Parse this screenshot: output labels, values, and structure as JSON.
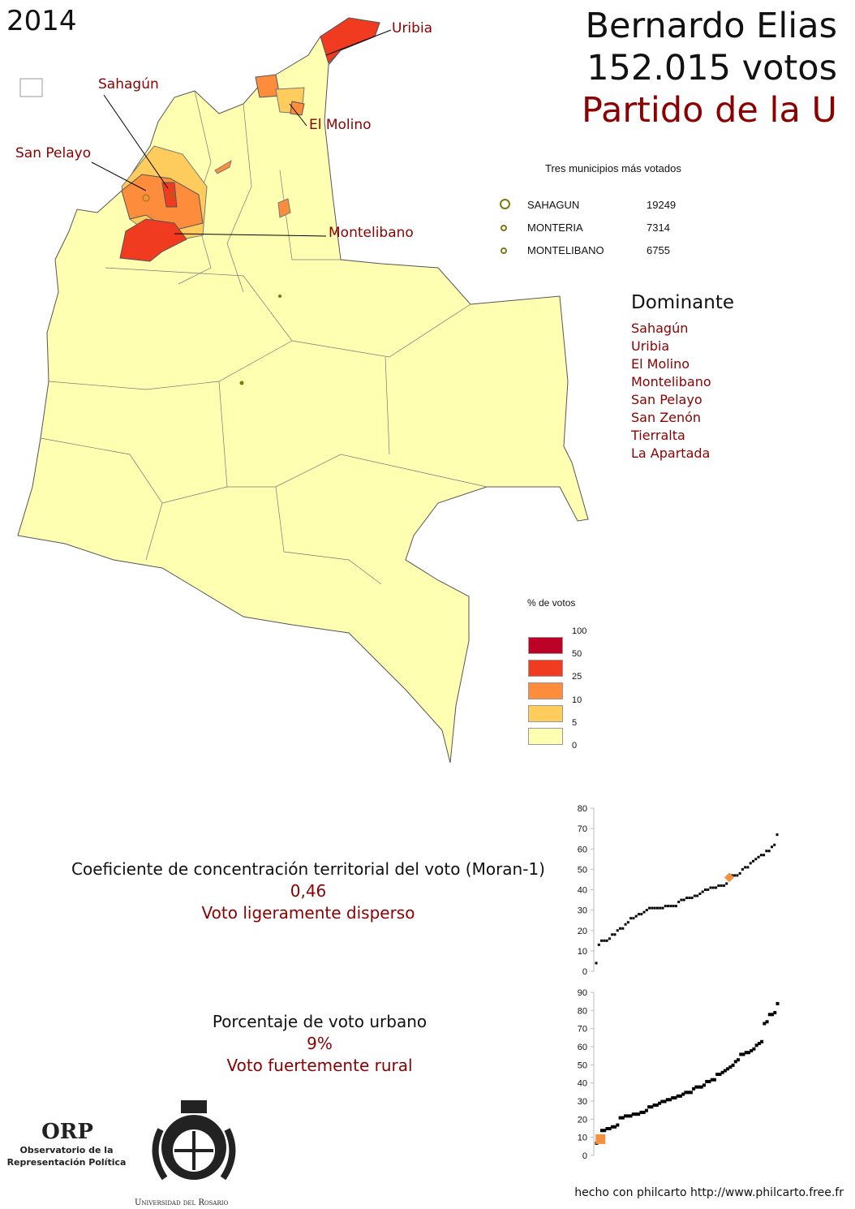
{
  "year": "2014",
  "candidate": {
    "name": "Bernardo Elias",
    "votes": "152.015 votos",
    "party": "Partido de la U"
  },
  "map_labels": [
    "Uribia",
    "Sahagún",
    "El Molino",
    "San Pelayo",
    "Montelibano"
  ],
  "top_municipalities": {
    "title": "Tres municipios más votados",
    "rows": [
      {
        "name": "SAHAGUN",
        "votes": "19249"
      },
      {
        "name": "MONTERIA",
        "votes": "7314"
      },
      {
        "name": "MONTELIBANO",
        "votes": "6755"
      }
    ]
  },
  "dominant": {
    "title": "Dominante",
    "items": [
      "Sahagún",
      "Uribia",
      "El Molino",
      "Montelibano",
      "San Pelayo",
      "San Zenón",
      "Tierralta",
      "La Apartada"
    ]
  },
  "legend": {
    "title": "% de votos",
    "breaks": [
      "100",
      "50",
      "25",
      "10",
      "5",
      "0"
    ],
    "colors": [
      "#bd0026",
      "#f03b20",
      "#fd8d3c",
      "#fecc5c",
      "#ffffb2"
    ]
  },
  "moran": {
    "label": "Coeficiente de concentración territorial del voto (Moran-1)",
    "value": "0,46",
    "verdict": "Voto ligeramente disperso"
  },
  "urban": {
    "label": "Porcentaje de voto urbano",
    "value": "9%",
    "verdict": "Voto fuertemente rural"
  },
  "chart_data": [
    {
      "type": "scatter",
      "ylim": [
        0,
        80
      ],
      "yticks": [
        "0",
        "10",
        "20",
        "30",
        "40",
        "50",
        "60",
        "70",
        "80"
      ],
      "highlight_index": 50,
      "highlight_color": "#f4913f",
      "values": [
        4,
        13,
        15,
        15,
        15,
        16,
        18,
        18,
        20,
        21,
        21,
        23,
        24,
        26,
        26,
        27,
        28,
        28,
        29,
        30,
        31,
        31,
        31,
        31,
        31,
        31,
        32,
        32,
        32,
        32,
        32,
        34,
        35,
        35,
        36,
        36,
        36,
        37,
        37,
        38,
        39,
        40,
        40,
        41,
        41,
        41,
        42,
        42,
        42,
        43,
        46,
        47,
        47,
        47,
        48,
        50,
        51,
        51,
        53,
        54,
        55,
        56,
        57,
        57,
        59,
        59,
        61,
        62,
        67
      ]
    },
    {
      "type": "scatter",
      "ylim": [
        0,
        90
      ],
      "yticks": [
        "0",
        "10",
        "20",
        "30",
        "40",
        "50",
        "60",
        "70",
        "80",
        "90"
      ],
      "highlight_index": 1,
      "highlight_color": "#f4913f",
      "values": [
        7,
        9,
        14,
        14,
        15,
        15,
        16,
        16,
        17,
        21,
        21,
        22,
        22,
        22,
        23,
        23,
        23,
        24,
        24,
        25,
        27,
        27,
        28,
        28,
        29,
        30,
        30,
        31,
        31,
        32,
        32,
        33,
        33,
        34,
        35,
        35,
        35,
        37,
        38,
        38,
        38,
        39,
        41,
        41,
        42,
        42,
        45,
        45,
        46,
        47,
        48,
        49,
        50,
        52,
        53,
        56,
        56,
        57,
        57,
        58,
        59,
        61,
        62,
        63,
        73,
        74,
        78,
        78,
        79,
        84
      ]
    }
  ],
  "logos": {
    "orp": "ORP",
    "orp_sub": "Observatorio de la Representación Política",
    "university": "Universidad del Rosario"
  },
  "credit": "hecho con philcarto http://www.philcarto.free.fr"
}
